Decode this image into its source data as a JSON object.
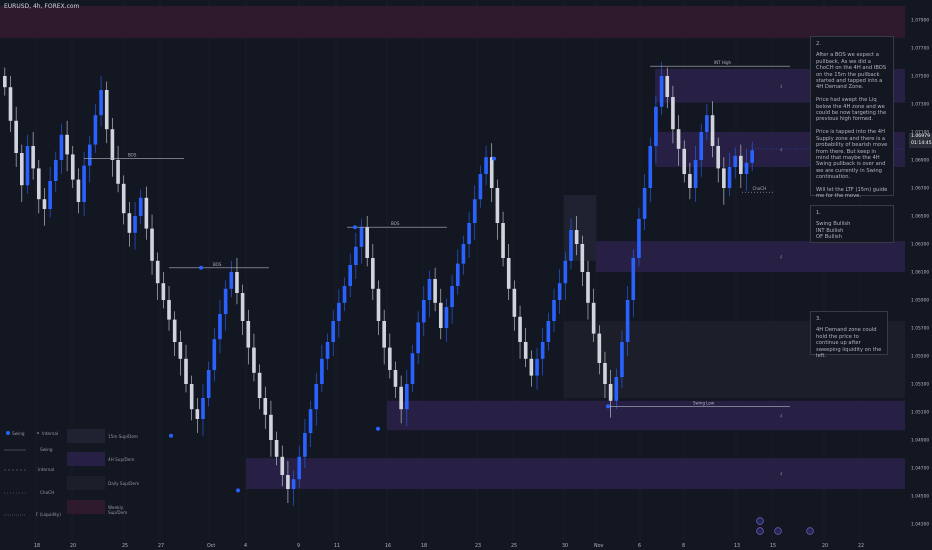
{
  "symbol": "EURUSD, 4h, FOREX.com",
  "colors": {
    "background": "#131722",
    "bull_candle": "#2962ff",
    "bear_candle": "#d1d4dc",
    "grid": "#1e222d",
    "zone_15m": "#1f2230",
    "zone_4h": "#272044",
    "zone_daily": "#1c1f29",
    "zone_weekly": "#2e1a2c",
    "structure_line": "#b2b5be",
    "swing_dot": "#2962ff"
  },
  "chart_data": {
    "type": "candlestick",
    "title": "EURUSD, 4h, FOREX.com",
    "y_axis": {
      "labels": [
        "1.07900",
        "1.07700",
        "1.07500",
        "1.07300",
        "1.07100",
        "1.06900",
        "1.06700",
        "1.06500",
        "1.06300",
        "1.06100",
        "1.05900",
        "1.05700",
        "1.05500",
        "1.05300",
        "1.05100",
        "1.04900",
        "1.04700",
        "1.04500",
        "1.04300"
      ],
      "range": [
        1.042,
        1.08
      ]
    },
    "x_axis": {
      "labels": [
        "18",
        "20",
        "25",
        "27",
        "Oct",
        "4",
        "9",
        "11",
        "16",
        "18",
        "23",
        "25",
        "30",
        "Nov",
        "6",
        "8",
        "13",
        "15",
        "20",
        "22"
      ]
    },
    "current_price": "1.06979",
    "countdown": "01:14:45",
    "zones": [
      {
        "type": "Weekly Sup/Dem",
        "x_from": "start",
        "x_to": "end",
        "y_from": 1.0777,
        "y_to": 1.08
      },
      {
        "type": "4H Sup/Dem",
        "x_from": "Nov+",
        "x_to": "end",
        "y_from": 1.0731,
        "y_to": 1.0755,
        "label": "4"
      },
      {
        "type": "4H Sup/Dem",
        "x_from": "Nov+",
        "x_to": "end",
        "y_from": 1.0685,
        "y_to": 1.071,
        "label": "4"
      },
      {
        "type": "4H Sup/Dem",
        "x_from": "Nov",
        "x_to": "end",
        "y_from": 1.061,
        "y_to": 1.0632,
        "label": "4"
      },
      {
        "type": "15m Sup/Dem",
        "x_from": "30",
        "x_to": "Nov",
        "y_from": 1.0618,
        "y_to": 1.0665
      },
      {
        "type": "Daily Sup/Dem",
        "x_from": "30",
        "x_to": "end",
        "y_from": 1.052,
        "y_to": 1.0575
      },
      {
        "type": "4H Sup/Dem",
        "x_from": "16",
        "x_to": "end",
        "y_from": 1.0497,
        "y_to": 1.0518,
        "label": "4"
      },
      {
        "type": "4H Sup/Dem",
        "x_from": "4",
        "x_to": "end",
        "y_from": 1.0455,
        "y_to": 1.0477,
        "label": "4"
      }
    ],
    "structure_labels": [
      {
        "text": "BOS",
        "at": "Oct",
        "price": 1.0613
      },
      {
        "text": "BOS",
        "at": "16",
        "price": 1.0642
      },
      {
        "text": "BOS",
        "at": "25",
        "price": 1.0691
      },
      {
        "text": "INT High",
        "at": "13",
        "price": 1.0757
      },
      {
        "text": "Swing Low",
        "at": "13",
        "price": 1.0514
      },
      {
        "text": "ChoCH",
        "at": "13",
        "price": 1.0667
      }
    ],
    "closes": [
      1.0742,
      1.0718,
      1.0695,
      1.0672,
      1.07,
      1.0684,
      1.0662,
      1.0655,
      1.0675,
      1.069,
      1.0708,
      1.0694,
      1.0676,
      1.066,
      1.0686,
      1.0701,
      1.0722,
      1.074,
      1.0712,
      1.069,
      1.0673,
      1.0652,
      1.0638,
      1.065,
      1.0663,
      1.0641,
      1.0618,
      1.0602,
      1.059,
      1.0576,
      1.056,
      1.0548,
      1.053,
      1.0512,
      1.0505,
      1.052,
      1.054,
      1.0562,
      1.058,
      1.0598,
      1.061,
      1.0595,
      1.0575,
      1.0556,
      1.0538,
      1.052,
      1.0508,
      1.049,
      1.0478,
      1.0465,
      1.0455,
      1.0462,
      1.0478,
      1.0495,
      1.0512,
      1.053,
      1.0548,
      1.056,
      1.0575,
      1.0588,
      1.06,
      1.0615,
      1.0628,
      1.0642,
      1.062,
      1.0598,
      1.0575,
      1.0556,
      1.054,
      1.0528,
      1.0512,
      1.053,
      1.0552,
      1.0574,
      1.059,
      1.0605,
      1.0588,
      1.057,
      1.0585,
      1.06,
      1.0616,
      1.063,
      1.0645,
      1.0662,
      1.068,
      1.0692,
      1.067,
      1.0645,
      1.062,
      1.0598,
      1.0578,
      1.056,
      1.0548,
      1.0536,
      1.0548,
      1.056,
      1.0575,
      1.059,
      1.0602,
      1.0618,
      1.064,
      1.063,
      1.061,
      1.0588,
      1.0566,
      1.0545,
      1.053,
      1.0518,
      1.0535,
      1.056,
      1.059,
      1.062,
      1.0648,
      1.067,
      1.07,
      1.0728,
      1.075,
      1.0735,
      1.0712,
      1.0698,
      1.068,
      1.067,
      1.069,
      1.071,
      1.0722,
      1.07,
      1.0684,
      1.067,
      1.0685,
      1.0693,
      1.068,
      1.0688,
      1.0697
    ]
  },
  "notes": [
    {
      "num": "2.",
      "body": "After a BOS we expect a pullback, As we did a ChoCH on the 4H and IBOS on the 15m the pullback started and tapped into a 4H Demand Zone.\n\nPrice had swept the Liq below the 4H zone and we could be now targeting the previous high formed.\n\nPrice is tapped into the 4H Supply zone and there is a probability of bearish move from there. But keep in mind that maybe the 4H Swing pullback is over and we are currently in Swing continuation.\n\nWill let the LTF (15m) guide me for the move."
    },
    {
      "num": "1.",
      "body": "Swing Bullish\nINT Bullish\nOF Bullish"
    },
    {
      "num": "3.",
      "body": "4H Demand zone could hold the price to continue up after sweeping liquidity on the left."
    }
  ],
  "legend": {
    "items": [
      "Swing",
      "Internal",
      "Swing",
      "Internal",
      "ChoCH",
      "F (Liquidity)"
    ],
    "zones": [
      "15m Sup/Dem",
      "4H Sup/Dem",
      "Daily Sup/Dem",
      "Weekly Sup/Dem"
    ]
  }
}
